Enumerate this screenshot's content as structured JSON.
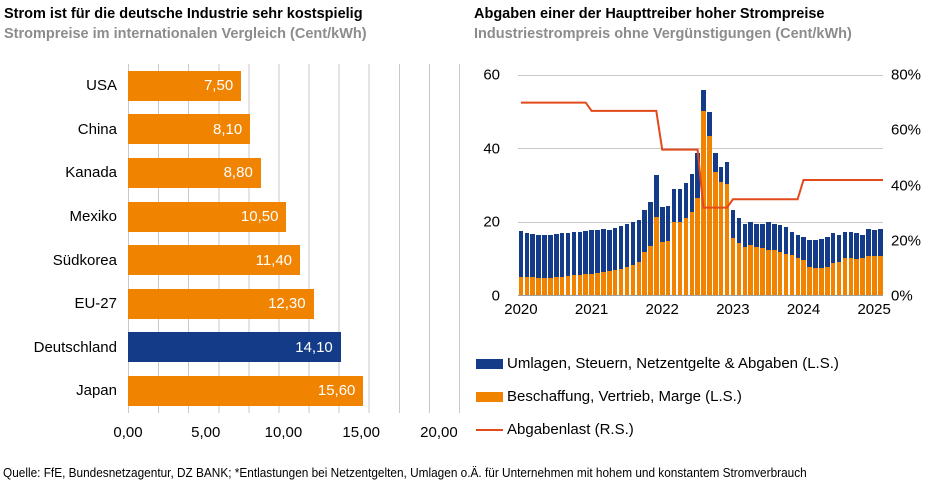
{
  "footer": "Quelle: FfE, Bundesnetzagentur, DZ BANK; *Entlastungen bei Netzentgelten, Umlagen o.Ä. für Unternehmen mit hohem und konstantem Stromverbrauch",
  "colors": {
    "bar_orange": "#F08300",
    "bar_blue": "#133B87",
    "line_red": "#E2491B",
    "gridline_gray": "#C8C8C8",
    "subtitle_gray": "#8C8C8C",
    "bar_value_text": "#FFFFFF"
  },
  "chart_data": [
    {
      "type": "bar",
      "orientation": "horizontal",
      "title": "Strom ist für die deutsche Industrie sehr kostspielig",
      "subtitle": "Strompreise im internationalen Vergleich (Cent/kWh)",
      "categories": [
        "USA",
        "China",
        "Kanada",
        "Mexiko",
        "Südkorea",
        "EU-27",
        "Deutschland",
        "Japan"
      ],
      "values": [
        7.5,
        8.1,
        8.8,
        10.5,
        11.4,
        12.3,
        14.1,
        15.6
      ],
      "value_labels": [
        "7,50",
        "8,10",
        "8,80",
        "10,50",
        "11,40",
        "12,30",
        "14,10",
        "15,60"
      ],
      "highlight_index": 6,
      "highlight_category": "Deutschland",
      "xlim": [
        0,
        22
      ],
      "gridline_step": 2,
      "grid": true,
      "x_ticks": {
        "values": [
          0,
          5,
          10,
          15,
          20
        ],
        "labels": [
          "0,00",
          "5,00",
          "10,00",
          "15,00",
          "20,00"
        ]
      }
    },
    {
      "type": "bar",
      "subtype": "stacked-with-line",
      "title": "Abgaben einer der Haupttreiber hoher Strompreise",
      "subtitle": "Industriestrompreis ohne Vergünstigungen (Cent/kWh)",
      "frequency": "monthly",
      "x_start": "2020-01",
      "x_end": "2025-02",
      "x_labels": [
        "2020",
        "2021",
        "2022",
        "2023",
        "2024",
        "2025"
      ],
      "left_axis": {
        "range": [
          0,
          60
        ],
        "tick_values": [
          0,
          20,
          40,
          60
        ],
        "labels": [
          "0",
          "20",
          "40",
          "60"
        ]
      },
      "right_axis": {
        "range": [
          0,
          80
        ],
        "tick_values": [
          0,
          20,
          40,
          60,
          80
        ],
        "labels": [
          "0%",
          "20%",
          "40%",
          "60%",
          "80%"
        ]
      },
      "grid": true,
      "legend_position": "bottom",
      "series": [
        {
          "name": "Umlagen, Steuern, Netzentgelte & Abgaben (L.S.)",
          "type": "bar",
          "stack": true,
          "axis": "left",
          "color": "#133B87",
          "values": [
            12.4,
            12.1,
            11.8,
            11.8,
            11.8,
            11.6,
            11.7,
            11.8,
            11.8,
            11.8,
            11.8,
            11.8,
            11.9,
            11.8,
            11.8,
            11.2,
            11.6,
            11.9,
            11.7,
            11.6,
            11.5,
            11.3,
            11.9,
            11.3,
            9.5,
            9.4,
            9.0,
            9.1,
            9.6,
            10.3,
            12.3,
            5.5,
            6.3,
            5.3,
            4.0,
            5.8,
            7.8,
            6.8,
            6.4,
            6.3,
            6.4,
            6.8,
            7.7,
            7.3,
            7.2,
            7.3,
            6.3,
            6.3,
            6.4,
            7.3,
            7.7,
            8.1,
            8.2,
            8.2,
            7.4,
            7.2,
            6.9,
            7.0,
            6.5,
            7.4,
            7.1,
            7.2
          ]
        },
        {
          "name": "Beschaffung, Vertrieb, Marge (L.S.)",
          "type": "bar",
          "stack": true,
          "axis": "left",
          "color": "#F08300",
          "values": [
            5.0,
            4.9,
            4.8,
            4.7,
            4.6,
            4.7,
            4.9,
            5.0,
            5.2,
            5.4,
            5.5,
            5.6,
            5.8,
            6.0,
            6.3,
            6.5,
            6.7,
            7.0,
            7.6,
            8.2,
            9.0,
            11.8,
            13.5,
            21.3,
            14.5,
            14.8,
            19.8,
            19.9,
            20.9,
            22.7,
            26.5,
            50.3,
            43.5,
            33.5,
            30.8,
            30.4,
            15.5,
            14.2,
            13.1,
            13.6,
            13.1,
            12.7,
            12.2,
            12.2,
            11.8,
            11.3,
            10.9,
            10.0,
            9.5,
            7.7,
            7.3,
            7.3,
            7.7,
            8.6,
            9.1,
            10.0,
            10.2,
            9.8,
            10.0,
            10.7,
            10.6,
            10.7
          ]
        },
        {
          "name": "Abgabenlast (R.S.)",
          "type": "line",
          "axis": "right",
          "color": "#E2491B",
          "unit": "%",
          "values": [
            70,
            70,
            70,
            70,
            70,
            70,
            70,
            70,
            70,
            70,
            70,
            70,
            67,
            67,
            67,
            67,
            67,
            67,
            67,
            67,
            67,
            67,
            67,
            67,
            53,
            53,
            53,
            53,
            53,
            53,
            53,
            32,
            32,
            32,
            32,
            32,
            35,
            35,
            35,
            35,
            35,
            35,
            35,
            35,
            35,
            35,
            35,
            35,
            42,
            42,
            42,
            42,
            42,
            42,
            42,
            42,
            42,
            42,
            42,
            42,
            42,
            42
          ]
        }
      ]
    }
  ]
}
